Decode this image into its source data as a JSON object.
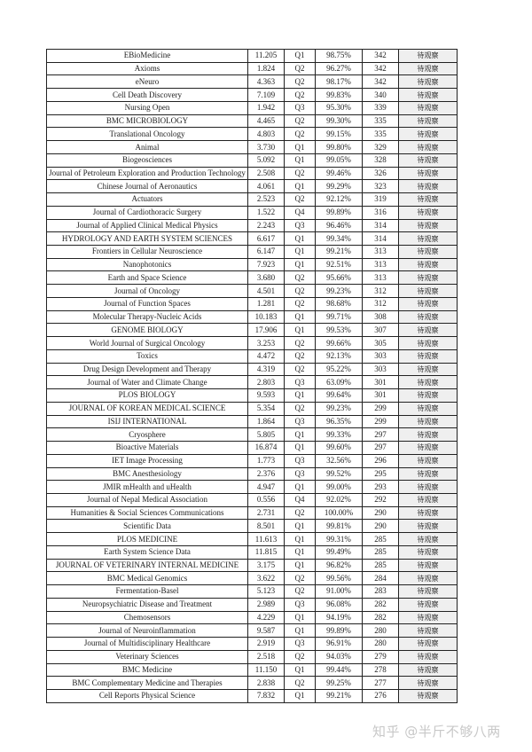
{
  "table": {
    "rows": [
      [
        "EBioMedicine",
        "11.205",
        "Q1",
        "98.75%",
        "342",
        "待观察"
      ],
      [
        "Axioms",
        "1.824",
        "Q2",
        "96.27%",
        "342",
        "待观察"
      ],
      [
        "eNeuro",
        "4.363",
        "Q2",
        "98.17%",
        "342",
        "待观察"
      ],
      [
        "Cell Death Discovery",
        "7.109",
        "Q2",
        "99.83%",
        "340",
        "待观察"
      ],
      [
        "Nursing Open",
        "1.942",
        "Q3",
        "95.30%",
        "339",
        "待观察"
      ],
      [
        "BMC MICROBIOLOGY",
        "4.465",
        "Q2",
        "99.30%",
        "335",
        "待观察"
      ],
      [
        "Translational Oncology",
        "4.803",
        "Q2",
        "99.15%",
        "335",
        "待观察"
      ],
      [
        "Animal",
        "3.730",
        "Q1",
        "99.80%",
        "329",
        "待观察"
      ],
      [
        "Biogeosciences",
        "5.092",
        "Q1",
        "99.05%",
        "328",
        "待观察"
      ],
      [
        "Journal of Petroleum Exploration and Production Technology",
        "2.508",
        "Q2",
        "99.46%",
        "326",
        "待观察"
      ],
      [
        "Chinese Journal of Aeronautics",
        "4.061",
        "Q1",
        "99.29%",
        "323",
        "待观察"
      ],
      [
        "Actuators",
        "2.523",
        "Q2",
        "92.12%",
        "319",
        "待观察"
      ],
      [
        "Journal of Cardiothoracic Surgery",
        "1.522",
        "Q4",
        "99.89%",
        "316",
        "待观察"
      ],
      [
        "Journal of Applied Clinical Medical Physics",
        "2.243",
        "Q3",
        "96.46%",
        "314",
        "待观察"
      ],
      [
        "HYDROLOGY AND EARTH SYSTEM SCIENCES",
        "6.617",
        "Q1",
        "99.34%",
        "314",
        "待观察"
      ],
      [
        "Frontiers in Cellular Neuroscience",
        "6.147",
        "Q1",
        "99.21%",
        "313",
        "待观察"
      ],
      [
        "Nanophotonics",
        "7.923",
        "Q1",
        "92.51%",
        "313",
        "待观察"
      ],
      [
        "Earth and Space Science",
        "3.680",
        "Q2",
        "95.66%",
        "313",
        "待观察"
      ],
      [
        "Journal of Oncology",
        "4.501",
        "Q2",
        "99.23%",
        "312",
        "待观察"
      ],
      [
        "Journal of Function Spaces",
        "1.281",
        "Q2",
        "98.68%",
        "312",
        "待观察"
      ],
      [
        "Molecular Therapy-Nucleic Acids",
        "10.183",
        "Q1",
        "99.71%",
        "308",
        "待观察"
      ],
      [
        "GENOME BIOLOGY",
        "17.906",
        "Q1",
        "99.53%",
        "307",
        "待观察"
      ],
      [
        "World Journal of Surgical Oncology",
        "3.253",
        "Q2",
        "99.66%",
        "305",
        "待观察"
      ],
      [
        "Toxics",
        "4.472",
        "Q2",
        "92.13%",
        "303",
        "待观察"
      ],
      [
        "Drug Design Development and Therapy",
        "4.319",
        "Q2",
        "95.22%",
        "303",
        "待观察"
      ],
      [
        "Journal of Water and Climate Change",
        "2.803",
        "Q3",
        "63.09%",
        "301",
        "待观察"
      ],
      [
        "PLOS BIOLOGY",
        "9.593",
        "Q1",
        "99.64%",
        "301",
        "待观察"
      ],
      [
        "JOURNAL OF KOREAN MEDICAL SCIENCE",
        "5.354",
        "Q2",
        "99.23%",
        "299",
        "待观察"
      ],
      [
        "ISIJ INTERNATIONAL",
        "1.864",
        "Q3",
        "96.35%",
        "299",
        "待观察"
      ],
      [
        "Cryosphere",
        "5.805",
        "Q1",
        "99.33%",
        "297",
        "待观察"
      ],
      [
        "Bioactive Materials",
        "16.874",
        "Q1",
        "99.60%",
        "297",
        "待观察"
      ],
      [
        "IET Image Processing",
        "1.773",
        "Q3",
        "32.56%",
        "296",
        "待观察"
      ],
      [
        "BMC Anesthesiology",
        "2.376",
        "Q3",
        "99.52%",
        "295",
        "待观察"
      ],
      [
        "JMIR mHealth and uHealth",
        "4.947",
        "Q1",
        "99.00%",
        "293",
        "待观察"
      ],
      [
        "Journal of Nepal Medical Association",
        "0.556",
        "Q4",
        "92.02%",
        "292",
        "待观察"
      ],
      [
        "Humanities & Social Sciences Communications",
        "2.731",
        "Q2",
        "100.00%",
        "290",
        "待观察"
      ],
      [
        "Scientific Data",
        "8.501",
        "Q1",
        "99.81%",
        "290",
        "待观察"
      ],
      [
        "PLOS MEDICINE",
        "11.613",
        "Q1",
        "99.31%",
        "285",
        "待观察"
      ],
      [
        "Earth System Science Data",
        "11.815",
        "Q1",
        "99.49%",
        "285",
        "待观察"
      ],
      [
        "JOURNAL OF VETERINARY INTERNAL MEDICINE",
        "3.175",
        "Q1",
        "96.82%",
        "285",
        "待观察"
      ],
      [
        "BMC Medical Genomics",
        "3.622",
        "Q2",
        "99.56%",
        "284",
        "待观察"
      ],
      [
        "Fermentation-Basel",
        "5.123",
        "Q2",
        "91.00%",
        "283",
        "待观察"
      ],
      [
        "Neuropsychiatric Disease and Treatment",
        "2.989",
        "Q3",
        "96.08%",
        "282",
        "待观察"
      ],
      [
        "Chemosensors",
        "4.229",
        "Q1",
        "94.19%",
        "282",
        "待观察"
      ],
      [
        "Journal of Neuroinflammation",
        "9.587",
        "Q1",
        "99.89%",
        "280",
        "待观察"
      ],
      [
        "Journal of Multidisciplinary Healthcare",
        "2.919",
        "Q3",
        "96.91%",
        "280",
        "待观察"
      ],
      [
        "Veterinary Sciences",
        "2.518",
        "Q2",
        "94.03%",
        "279",
        "待观察"
      ],
      [
        "BMC Medicine",
        "11.150",
        "Q1",
        "99.44%",
        "278",
        "待观察"
      ],
      [
        "BMC Complementary Medicine and Therapies",
        "2.838",
        "Q2",
        "99.25%",
        "277",
        "待观察"
      ],
      [
        "Cell Reports Physical Science",
        "7.832",
        "Q1",
        "99.21%",
        "276",
        "待观察"
      ]
    ]
  },
  "watermark": "知乎 @半斤不够八两",
  "colors": {
    "status_cell_bg": "#efefef",
    "border": "#222222"
  }
}
